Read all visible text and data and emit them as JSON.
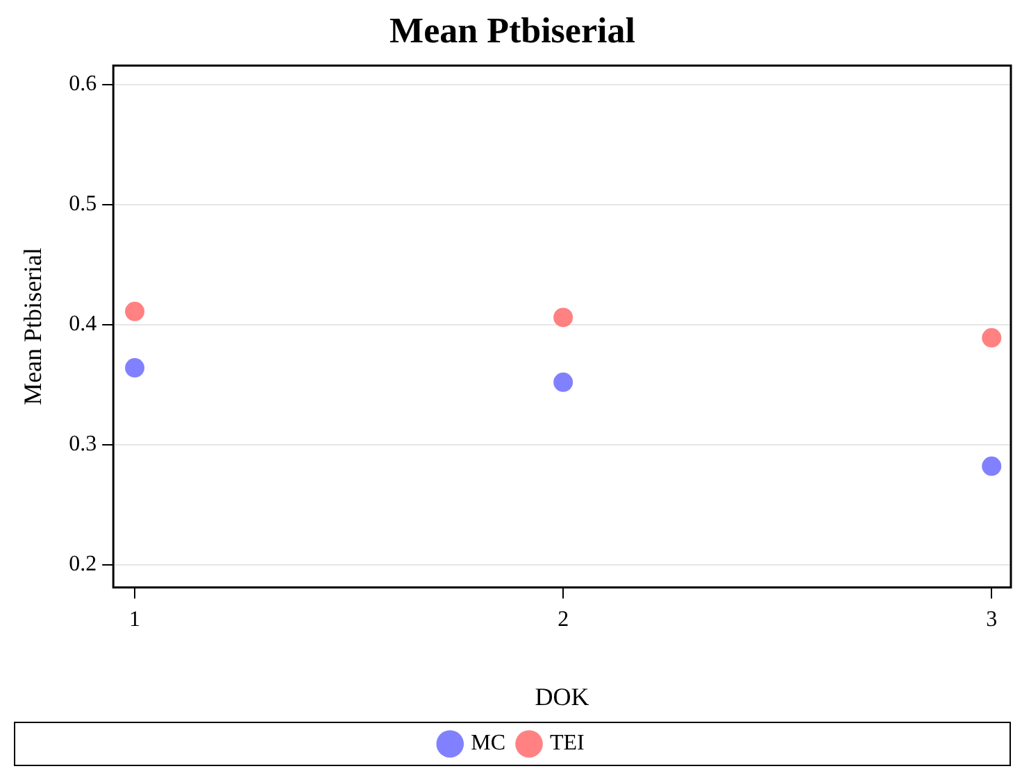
{
  "chart_data": {
    "type": "scatter",
    "title": "Mean Ptbiserial",
    "xlabel": "DOK",
    "ylabel": "Mean Ptbiserial",
    "x": [
      1,
      2,
      3
    ],
    "series": [
      {
        "name": "MC",
        "color": "#6b6bff",
        "values": [
          0.364,
          0.352,
          0.282
        ]
      },
      {
        "name": "TEI",
        "color": "#ff6b6b",
        "values": [
          0.411,
          0.406,
          0.389
        ]
      }
    ],
    "xlim": [
      0.95,
      3.045
    ],
    "xticks": [
      1,
      2,
      3
    ],
    "ylim": [
      0.181,
      0.616
    ],
    "yticks": [
      0.2,
      0.3,
      0.4,
      0.5,
      0.6
    ],
    "grid": "y",
    "legend": "bottom",
    "marker": "circle"
  }
}
